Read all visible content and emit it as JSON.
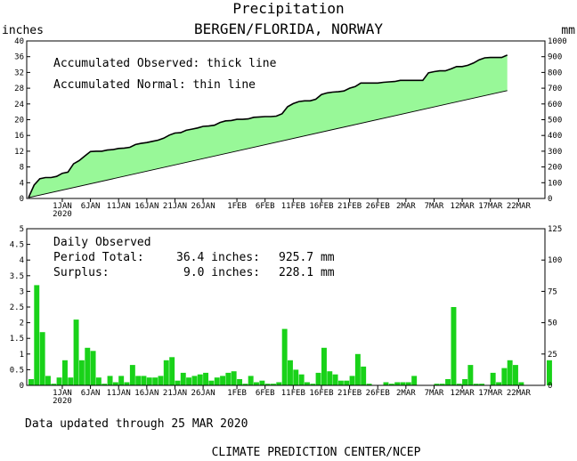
{
  "chart_data": [
    {
      "type": "area",
      "title": "Precipitation",
      "subtitle": "BERGEN/FLORIDA, NORWAY",
      "ylabel_left": "inches",
      "ylabel_right": "mm",
      "ylim_left": [
        0,
        40
      ],
      "ylim_right": [
        0,
        1000
      ],
      "yticks_left": [
        "0",
        "4",
        "8",
        "12",
        "16",
        "20",
        "24",
        "28",
        "32",
        "36",
        "40"
      ],
      "yticks_right": [
        "0",
        "100",
        "200",
        "300",
        "400",
        "500",
        "600",
        "700",
        "800",
        "900",
        "1000"
      ],
      "x_range_days": [
        0,
        85
      ],
      "x_ticks": [
        {
          "day": 6,
          "label": "1JAN",
          "sub": "2020"
        },
        {
          "day": 11,
          "label": "6JAN"
        },
        {
          "day": 16,
          "label": "11JAN"
        },
        {
          "day": 21,
          "label": "16JAN"
        },
        {
          "day": 26,
          "label": "21JAN"
        },
        {
          "day": 31,
          "label": "26JAN"
        },
        {
          "day": 37,
          "label": "1FEB"
        },
        {
          "day": 42,
          "label": "6FEB"
        },
        {
          "day": 47,
          "label": "11FEB"
        },
        {
          "day": 52,
          "label": "16FEB"
        },
        {
          "day": 57,
          "label": "21FEB"
        },
        {
          "day": 62,
          "label": "26FEB"
        },
        {
          "day": 67,
          "label": "2MAR"
        },
        {
          "day": 72,
          "label": "7MAR"
        },
        {
          "day": 77,
          "label": "12MAR"
        },
        {
          "day": 82,
          "label": "17MAR"
        },
        {
          "day": 87,
          "label": "22MAR"
        }
      ],
      "annotations": [
        "Accumulated Observed: thick line",
        "Accumulated Normal: thin line"
      ],
      "fill_color": "#98f898",
      "series": [
        {
          "name": "Accumulated Observed",
          "x": [
            0,
            1,
            2,
            3,
            4,
            5,
            6,
            7,
            8,
            9,
            10,
            11,
            12,
            13,
            14,
            15,
            16,
            17,
            18,
            19,
            20,
            21,
            22,
            23,
            24,
            25,
            26,
            27,
            28,
            29,
            30,
            31,
            32,
            33,
            34,
            35,
            36,
            37,
            38,
            39,
            40,
            41,
            42,
            43,
            44,
            45,
            46,
            47,
            48,
            49,
            50,
            51,
            52,
            53,
            54,
            55,
            56,
            57,
            58,
            59,
            60,
            61,
            62,
            63,
            64,
            65,
            66,
            67,
            68,
            69,
            70,
            71,
            72,
            73,
            74,
            75,
            76,
            77,
            78,
            79,
            80,
            81,
            82,
            83,
            84,
            85
          ],
          "y": [
            0.2,
            3.4,
            5.0,
            5.3,
            5.3,
            5.6,
            6.4,
            6.7,
            8.8,
            9.6,
            10.8,
            11.9,
            12.0,
            12.0,
            12.3,
            12.4,
            12.7,
            12.8,
            13.0,
            13.7,
            14.0,
            14.2,
            14.5,
            14.8,
            15.3,
            16.1,
            16.6,
            16.7,
            17.3,
            17.6,
            17.9,
            18.3,
            18.4,
            18.6,
            19.3,
            19.7,
            19.8,
            20.1,
            20.1,
            20.2,
            20.6,
            20.7,
            20.8,
            20.8,
            20.9,
            21.5,
            23.3,
            24.1,
            24.6,
            24.8,
            24.8,
            25.2,
            26.4,
            26.8,
            27.0,
            27.1,
            27.3,
            28.0,
            28.4,
            29.3,
            29.3,
            29.3,
            29.3,
            29.5,
            29.6,
            29.7,
            30.0,
            30.0,
            30.0,
            30.0,
            30.0,
            31.9,
            32.2,
            32.4,
            32.4,
            32.9,
            33.5,
            33.5,
            33.8,
            34.4,
            35.2,
            35.7,
            35.8,
            35.8,
            35.8,
            36.4
          ]
        },
        {
          "name": "Accumulated Normal",
          "x": [
            0,
            85
          ],
          "y": [
            0.2,
            27.4
          ]
        }
      ]
    },
    {
      "type": "bar",
      "title": "Daily Observed",
      "lines": [
        {
          "label": "Period Total:",
          "inches": "36.4 inches:",
          "mm": "925.7 mm"
        },
        {
          "label": "Surplus:",
          "inches": "9.0 inches:",
          "mm": "228.1 mm"
        }
      ],
      "ylim_left": [
        0,
        5
      ],
      "ylim_right": [
        0,
        125
      ],
      "yticks_left": [
        "0",
        "0.5",
        "1",
        "1.5",
        "2",
        "2.5",
        "3",
        "3.5",
        "4",
        "4.5",
        "5"
      ],
      "yticks_right": [
        "0",
        "25",
        "50",
        "75",
        "100",
        "125"
      ],
      "bar_color": "#19d219",
      "values": [
        0.2,
        3.2,
        1.7,
        0.3,
        0.05,
        0.25,
        0.8,
        0.25,
        2.1,
        0.8,
        1.2,
        1.1,
        0.25,
        0.05,
        0.3,
        0.1,
        0.3,
        0.1,
        0.65,
        0.3,
        0.3,
        0.25,
        0.25,
        0.3,
        0.8,
        0.9,
        0.15,
        0.4,
        0.25,
        0.3,
        0.35,
        0.4,
        0.15,
        0.25,
        0.3,
        0.4,
        0.45,
        0.2,
        0.05,
        0.3,
        0.1,
        0.15,
        0.05,
        0.05,
        0.1,
        1.8,
        0.8,
        0.5,
        0.35,
        0.1,
        0.05,
        0.4,
        1.2,
        0.45,
        0.35,
        0.15,
        0.15,
        0.3,
        1.0,
        0.6,
        0.05,
        0.0,
        0.0,
        0.1,
        0.05,
        0.1,
        0.1,
        0.1,
        0.3,
        0.0,
        0.0,
        0.0,
        0.05,
        0.05,
        0.2,
        2.5,
        0.05,
        0.2,
        0.65,
        0.05,
        0.05,
        0.0,
        0.4,
        0.1,
        0.55,
        0.8,
        0.65,
        0.1,
        0.0,
        0.0,
        0.0,
        0.0,
        0.8
      ]
    }
  ],
  "footer": {
    "updated": "Data updated through 25 MAR 2020",
    "credit": "CLIMATE PREDICTION CENTER/NCEP"
  }
}
